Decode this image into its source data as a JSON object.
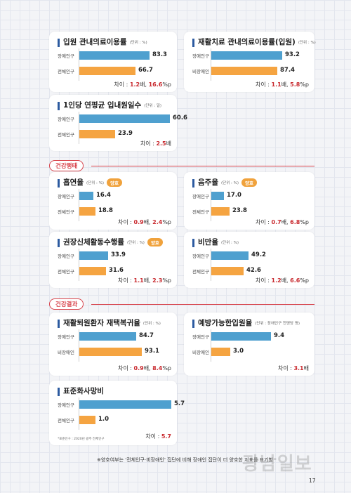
{
  "sections": {
    "health_behavior": "건강행태",
    "health_outcome": "건강결과"
  },
  "charts": [
    {
      "id": "inpatient-use",
      "title": "입원 관내의료이용률",
      "unit": "(단위 : %)",
      "badge": "",
      "rows": [
        {
          "label": "장애인구",
          "value": "83.3",
          "color": "#4fa0cf"
        },
        {
          "label": "전체인구",
          "value": "66.7",
          "color": "#f5a441"
        }
      ],
      "diff_prefix": "차이 : ",
      "diff_parts": [
        {
          "v": "1.2",
          "u": "배, "
        },
        {
          "v": "16.6",
          "u": "%p"
        }
      ]
    },
    {
      "id": "rehab-inpatient-use",
      "title": "재활치료 관내의료이용률(입원)",
      "unit": "(단위 : %)",
      "badge": "",
      "rows": [
        {
          "label": "장애인구",
          "value": "93.2",
          "color": "#4fa0cf"
        },
        {
          "label": "비장애인",
          "value": "87.4",
          "color": "#f5a441"
        }
      ],
      "diff_prefix": "차이 : ",
      "diff_parts": [
        {
          "v": "1.1",
          "u": "배, "
        },
        {
          "v": "5.8",
          "u": "%p"
        }
      ]
    },
    {
      "id": "inpatient-days",
      "title": "1인당 연평균 입내원일수",
      "unit": "(단위 : 일)",
      "badge": "",
      "rows": [
        {
          "label": "장애인구",
          "value": "60.6",
          "color": "#4fa0cf"
        },
        {
          "label": "전체인구",
          "value": "23.9",
          "color": "#f5a441"
        }
      ],
      "diff_prefix": "차이 : ",
      "diff_parts": [
        {
          "v": "2.5",
          "u": "배"
        }
      ]
    },
    {
      "id": "smoking",
      "title": "흡연율",
      "unit": "(단위 : %)",
      "badge": "양호",
      "rows": [
        {
          "label": "장애인구",
          "value": "16.4",
          "color": "#4fa0cf"
        },
        {
          "label": "전체인구",
          "value": "18.8",
          "color": "#f5a441"
        }
      ],
      "diff_prefix": "차이 : ",
      "diff_parts": [
        {
          "v": "0.9",
          "u": "배, "
        },
        {
          "v": "2.4",
          "u": "%p"
        }
      ]
    },
    {
      "id": "drinking",
      "title": "음주율",
      "unit": "(단위 : %)",
      "badge": "양호",
      "rows": [
        {
          "label": "장애인구",
          "value": "17.0",
          "color": "#4fa0cf"
        },
        {
          "label": "전체인구",
          "value": "23.8",
          "color": "#f5a441"
        }
      ],
      "diff_prefix": "차이 : ",
      "diff_parts": [
        {
          "v": "0.7",
          "u": "배, "
        },
        {
          "v": "6.8",
          "u": "%p"
        }
      ]
    },
    {
      "id": "physical-activity",
      "title": "권장신체활동수행률",
      "unit": "(단위 : %)",
      "badge": "양호",
      "rows": [
        {
          "label": "장애인구",
          "value": "33.9",
          "color": "#4fa0cf"
        },
        {
          "label": "전체인구",
          "value": "31.6",
          "color": "#f5a441"
        }
      ],
      "diff_prefix": "차이 : ",
      "diff_parts": [
        {
          "v": "1.1",
          "u": "배, "
        },
        {
          "v": "2.3",
          "u": "%p"
        }
      ]
    },
    {
      "id": "obesity",
      "title": "비만율",
      "unit": "(단위 : %)",
      "badge": "",
      "rows": [
        {
          "label": "장애인구",
          "value": "49.2",
          "color": "#4fa0cf"
        },
        {
          "label": "전체인구",
          "value": "42.6",
          "color": "#f5a441"
        }
      ],
      "diff_prefix": "차이 : ",
      "diff_parts": [
        {
          "v": "1.2",
          "u": "배, "
        },
        {
          "v": "6.6",
          "u": "%p"
        }
      ]
    },
    {
      "id": "rehab-return-home",
      "title": "재활퇴원환자 재택복귀율",
      "unit": "(단위 : %)",
      "badge": "",
      "rows": [
        {
          "label": "장애인구",
          "value": "84.7",
          "color": "#4fa0cf"
        },
        {
          "label": "비장애인",
          "value": "93.1",
          "color": "#f5a441"
        }
      ],
      "diff_prefix": "차이 : ",
      "diff_parts": [
        {
          "v": "0.9",
          "u": "배, "
        },
        {
          "v": "8.4",
          "u": "%p"
        }
      ]
    },
    {
      "id": "preventable-admission",
      "title": "예방가능한입원율",
      "unit": "(단위 : 장애인구 천명당 명)",
      "badge": "",
      "rows": [
        {
          "label": "장애인구",
          "value": "9.4",
          "color": "#4fa0cf"
        },
        {
          "label": "비장애인",
          "value": "3.0",
          "color": "#f5a441"
        }
      ],
      "diff_prefix": "차이 : ",
      "diff_parts": [
        {
          "v": "3.1",
          "u": "배"
        }
      ]
    },
    {
      "id": "standardized-mortality",
      "title": "표준화사망비",
      "unit": "",
      "badge": "",
      "rows": [
        {
          "label": "장애인구",
          "value": "5.7",
          "color": "#4fa0cf"
        },
        {
          "label": "전체인구",
          "value": "1.0",
          "color": "#f5a441"
        }
      ],
      "diff_prefix": "차이 : ",
      "diff_parts": [
        {
          "v": "5.7",
          "u": ""
        }
      ],
      "note": "*표준인구 : 2020년 광주 전체인구"
    }
  ],
  "chart_data": [
    {
      "type": "bar",
      "title": "입원 관내의료이용률",
      "categories": [
        "장애인구",
        "전체인구"
      ],
      "values": [
        83.3,
        66.7
      ]
    },
    {
      "type": "bar",
      "title": "재활치료 관내의료이용률(입원)",
      "categories": [
        "장애인구",
        "비장애인"
      ],
      "values": [
        93.2,
        87.4
      ]
    },
    {
      "type": "bar",
      "title": "1인당 연평균 입내원일수",
      "categories": [
        "장애인구",
        "전체인구"
      ],
      "values": [
        60.6,
        23.9
      ]
    },
    {
      "type": "bar",
      "title": "흡연율",
      "categories": [
        "장애인구",
        "전체인구"
      ],
      "values": [
        16.4,
        18.8
      ]
    },
    {
      "type": "bar",
      "title": "음주율",
      "categories": [
        "장애인구",
        "전체인구"
      ],
      "values": [
        17.0,
        23.8
      ]
    },
    {
      "type": "bar",
      "title": "권장신체활동수행률",
      "categories": [
        "장애인구",
        "전체인구"
      ],
      "values": [
        33.9,
        31.6
      ]
    },
    {
      "type": "bar",
      "title": "비만율",
      "categories": [
        "장애인구",
        "전체인구"
      ],
      "values": [
        49.2,
        42.6
      ]
    },
    {
      "type": "bar",
      "title": "재활퇴원환자 재택복귀율",
      "categories": [
        "장애인구",
        "비장애인"
      ],
      "values": [
        84.7,
        93.1
      ]
    },
    {
      "type": "bar",
      "title": "예방가능한입원율",
      "categories": [
        "장애인구",
        "비장애인"
      ],
      "values": [
        9.4,
        3.0
      ]
    },
    {
      "type": "bar",
      "title": "표준화사망비",
      "categories": [
        "장애인구",
        "전체인구"
      ],
      "values": [
        5.7,
        1.0
      ]
    }
  ],
  "footnote": "※양호여부는 '전체인구·비장애인' 집단에 비해 장애인 집단이 더 양호한 지표를 표기함",
  "page_number": "17",
  "watermark": "광남일보",
  "colors": {
    "disabled": "#4fa0cf",
    "comparison": "#f5a441",
    "highlight": "#c8282d",
    "section": "#d8434b"
  }
}
